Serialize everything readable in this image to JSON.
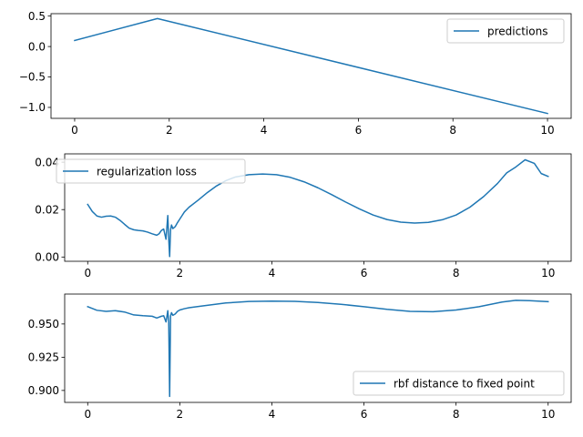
{
  "chart_data": [
    {
      "type": "line",
      "legend": "top-right",
      "xlim": [
        -0.5,
        10.5
      ],
      "ylim": [
        -1.18,
        0.54
      ],
      "xticks": [
        0,
        2,
        4,
        6,
        8,
        10
      ],
      "xtick_labels": [
        "0",
        "2",
        "4",
        "6",
        "8",
        "10"
      ],
      "yticks": [
        -1.0,
        -0.5,
        0.0,
        0.5
      ],
      "ytick_labels": [
        "−1.0",
        "−0.5",
        "0.0",
        "0.5"
      ],
      "series": [
        {
          "name": "predictions",
          "color": "#1f77b4",
          "x": [
            0,
            1.75,
            10
          ],
          "y": [
            0.1,
            0.46,
            -1.1
          ]
        }
      ]
    },
    {
      "type": "line",
      "legend": "top-left",
      "xlim": [
        -0.5,
        10.5
      ],
      "ylim": [
        -0.0018,
        0.0435
      ],
      "xticks": [
        0,
        2,
        4,
        6,
        8,
        10
      ],
      "xtick_labels": [
        "0",
        "2",
        "4",
        "6",
        "8",
        "10"
      ],
      "yticks": [
        0.0,
        0.02,
        0.04
      ],
      "ytick_labels": [
        "0.00",
        "0.02",
        "0.04"
      ],
      "series": [
        {
          "name": "regularization loss",
          "color": "#1f77b4",
          "x": [
            0,
            0.1,
            0.2,
            0.3,
            0.4,
            0.5,
            0.6,
            0.7,
            0.8,
            0.9,
            1.0,
            1.1,
            1.2,
            1.3,
            1.4,
            1.5,
            1.55,
            1.6,
            1.65,
            1.7,
            1.72,
            1.74,
            1.76,
            1.78,
            1.8,
            1.82,
            1.85,
            1.9,
            1.95,
            2.0,
            2.05,
            2.1,
            2.2,
            2.4,
            2.6,
            2.8,
            3.0,
            3.2,
            3.5,
            3.8,
            4.1,
            4.4,
            4.7,
            5.0,
            5.3,
            5.6,
            5.9,
            6.2,
            6.5,
            6.8,
            7.1,
            7.4,
            7.7,
            8.0,
            8.3,
            8.6,
            8.9,
            9.1,
            9.3,
            9.5,
            9.7,
            9.85,
            10.0
          ],
          "y": [
            0.0222,
            0.0192,
            0.0173,
            0.0168,
            0.0172,
            0.0173,
            0.0168,
            0.0155,
            0.0138,
            0.0122,
            0.0115,
            0.0112,
            0.011,
            0.0105,
            0.0098,
            0.0092,
            0.0098,
            0.0112,
            0.0118,
            0.0075,
            0.0125,
            0.0175,
            0.0075,
            0.0002,
            0.0115,
            0.0135,
            0.012,
            0.0128,
            0.0145,
            0.016,
            0.0175,
            0.019,
            0.021,
            0.024,
            0.0272,
            0.03,
            0.0322,
            0.0337,
            0.0347,
            0.035,
            0.0347,
            0.0336,
            0.0317,
            0.0292,
            0.0263,
            0.0232,
            0.0203,
            0.0177,
            0.0158,
            0.0147,
            0.0143,
            0.0146,
            0.0157,
            0.0177,
            0.021,
            0.0255,
            0.031,
            0.0355,
            0.038,
            0.041,
            0.0395,
            0.0352,
            0.034
          ]
        }
      ]
    },
    {
      "type": "line",
      "legend": "bottom-right",
      "xlim": [
        -0.5,
        10.5
      ],
      "ylim": [
        0.891,
        0.9725
      ],
      "xticks": [
        0,
        2,
        4,
        6,
        8,
        10
      ],
      "xtick_labels": [
        "0",
        "2",
        "4",
        "6",
        "8",
        "10"
      ],
      "yticks": [
        0.9,
        0.925,
        0.95
      ],
      "ytick_labels": [
        "0.900",
        "0.925",
        "0.950"
      ],
      "series": [
        {
          "name": "rbf distance to fixed point",
          "color": "#1f77b4",
          "x": [
            0,
            0.2,
            0.4,
            0.6,
            0.8,
            1.0,
            1.2,
            1.4,
            1.5,
            1.6,
            1.65,
            1.7,
            1.72,
            1.74,
            1.76,
            1.78,
            1.8,
            1.82,
            1.85,
            1.9,
            1.95,
            2.0,
            2.1,
            2.2,
            2.5,
            3.0,
            3.5,
            4.0,
            4.5,
            5.0,
            5.5,
            6.0,
            6.5,
            7.0,
            7.5,
            8.0,
            8.5,
            9.0,
            9.3,
            9.6,
            10.0
          ],
          "y": [
            0.963,
            0.9603,
            0.9595,
            0.96,
            0.959,
            0.9568,
            0.9562,
            0.9558,
            0.9545,
            0.9558,
            0.9562,
            0.9515,
            0.9555,
            0.96,
            0.951,
            0.8955,
            0.956,
            0.9585,
            0.9565,
            0.9575,
            0.9595,
            0.9605,
            0.9615,
            0.9622,
            0.9636,
            0.9658,
            0.9669,
            0.9672,
            0.967,
            0.9662,
            0.9648,
            0.963,
            0.961,
            0.9595,
            0.9592,
            0.9605,
            0.963,
            0.9665,
            0.9678,
            0.9675,
            0.9668
          ]
        }
      ]
    }
  ]
}
